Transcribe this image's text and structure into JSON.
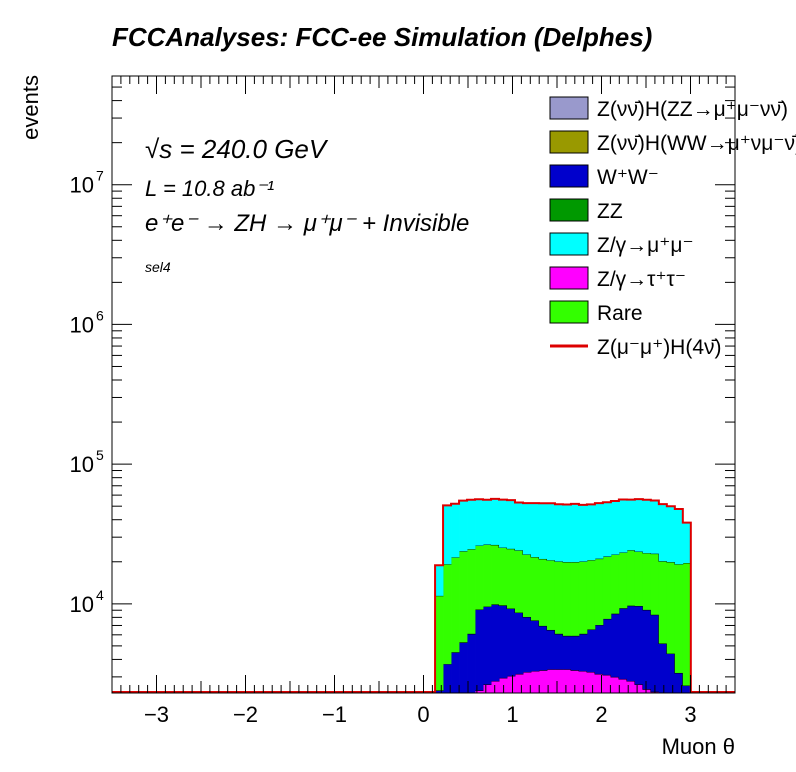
{
  "chart_data": {
    "type": "stacked-histogram",
    "title": "FCCAnalyses: FCC-ee Simulation (Delphes)",
    "xlabel": "Muon θ",
    "ylabel": "events",
    "xlim": [
      -3.5,
      3.5
    ],
    "ylog": true,
    "ylim": [
      2300,
      60000000
    ],
    "x_ticks": [
      -3,
      -2,
      -1,
      0,
      1,
      2,
      3
    ],
    "x_tick_labels": [
      "−3",
      "−2",
      "−1",
      "0",
      "1",
      "2",
      "3"
    ],
    "y_ticks": [
      10000,
      100000,
      1000000,
      10000000
    ],
    "y_tick_labels": [
      {
        "base": "10",
        "exp": "4"
      },
      {
        "base": "10",
        "exp": "5"
      },
      {
        "base": "10",
        "exp": "6"
      },
      {
        "base": "10",
        "exp": "7"
      }
    ],
    "annotations": {
      "sqrt_s": "√s = 240.0 GeV",
      "lumi": "L = 10.8 ab⁻¹",
      "process": "e⁺e⁻ → ZH → μ⁺μ⁻ + Invisible",
      "selection": "sel4"
    },
    "legend_position": "top-right",
    "bins": {
      "lo": 0.13,
      "width": 0.0898,
      "n": 32
    },
    "series": [
      {
        "name": "Z/γ→τ⁺τ⁻",
        "color": "#ff00ff",
        "values": [
          0,
          0,
          0,
          0,
          0,
          2400,
          2650,
          2800,
          2950,
          3050,
          3150,
          3250,
          3300,
          3350,
          3400,
          3400,
          3400,
          3350,
          3300,
          3250,
          3150,
          3100,
          3000,
          2900,
          2800,
          2650,
          2450,
          2350,
          0,
          0,
          0,
          0
        ]
      },
      {
        "name": "Z/γ→μ⁺μ⁻",
        "color": "#00ffff",
        "values": [
          0,
          0,
          0,
          0,
          0,
          0,
          0,
          0,
          0,
          0,
          0,
          0,
          0,
          0,
          0,
          0,
          0,
          0,
          0,
          0,
          0,
          0,
          0,
          0,
          0,
          0,
          0,
          0,
          0,
          0,
          0,
          0
        ]
      },
      {
        "name": "ZZ",
        "color": "#009900",
        "values": [
          0,
          0,
          0,
          0,
          0,
          0,
          0,
          0,
          0,
          0,
          0,
          0,
          0,
          0,
          0,
          0,
          0,
          0,
          0,
          0,
          0,
          0,
          0,
          0,
          0,
          0,
          0,
          0,
          0,
          0,
          0,
          0
        ]
      },
      {
        "name": "W⁺W⁻",
        "color": "#0000cc",
        "values": [
          2400,
          3700,
          4500,
          5300,
          6100,
          6700,
          6900,
          7100,
          6800,
          6200,
          5500,
          4800,
          4300,
          3600,
          3100,
          2700,
          2500,
          2550,
          2800,
          3300,
          3900,
          4700,
          5500,
          6400,
          6900,
          7000,
          6600,
          6000,
          5200,
          4400,
          3200,
          2600
        ]
      },
      {
        "name": "Z(νν̄)H(WW→μ⁺νμ⁻ν̄)",
        "color": "#999900",
        "values": [
          0,
          0,
          0,
          0,
          0,
          0,
          0,
          0,
          0,
          0,
          0,
          0,
          0,
          0,
          0,
          0,
          0,
          0,
          0,
          0,
          0,
          0,
          0,
          0,
          0,
          0,
          0,
          0,
          0,
          0,
          0,
          0
        ]
      },
      {
        "name": "Z(νν̄)H(ZZ→μ⁺μ⁻νν̄)",
        "color": "#9999cc",
        "values": [
          0,
          0,
          0,
          0,
          0,
          0,
          0,
          0,
          0,
          0,
          0,
          0,
          0,
          0,
          0,
          0,
          0,
          0,
          0,
          0,
          0,
          0,
          0,
          0,
          0,
          0,
          0,
          0,
          0,
          0,
          0,
          0
        ]
      },
      {
        "name": "Rare",
        "color": "#33ff00",
        "values": [
          9000,
          15500,
          17000,
          18500,
          18500,
          17000,
          17000,
          16500,
          15500,
          15500,
          15500,
          14500,
          14000,
          14000,
          14000,
          14000,
          14000,
          14000,
          14000,
          14000,
          14000,
          14000,
          14000,
          14000,
          14500,
          14000,
          14000,
          14500,
          15000,
          15500,
          16000,
          17000
        ]
      },
      {
        "name": "Z/γ→μ⁺μ⁻ (2)",
        "color": "#00ffff",
        "values": [
          7500,
          31500,
          30500,
          31000,
          31000,
          30000,
          29000,
          30000,
          30500,
          30500,
          29000,
          30000,
          31000,
          31500,
          32000,
          31500,
          31500,
          32000,
          31000,
          31000,
          31500,
          31500,
          32000,
          32500,
          31500,
          32500,
          32500,
          32000,
          31500,
          30000,
          28500,
          18500
        ]
      }
    ],
    "signal": {
      "name": "Z(μ⁻μ⁺)H(4ν̄)",
      "color": "#dd0000"
    },
    "legend": [
      {
        "label": "Z(νν̄)H(ZZ→μ⁺μ⁻νν̄)",
        "color": "#9999cc",
        "kind": "box"
      },
      {
        "label": "Z(νν̄)H(WW→μ⁺νμ⁻ν̄)",
        "color": "#999900",
        "kind": "box"
      },
      {
        "label": "W⁺W⁻",
        "color": "#0000cc",
        "kind": "box"
      },
      {
        "label": "ZZ",
        "color": "#009900",
        "kind": "box"
      },
      {
        "label": "Z/γ→μ⁺μ⁻",
        "color": "#00ffff",
        "kind": "box"
      },
      {
        "label": "Z/γ→τ⁺τ⁻",
        "color": "#ff00ff",
        "kind": "box"
      },
      {
        "label": "Rare",
        "color": "#33ff00",
        "kind": "box"
      },
      {
        "label": "Z(μ⁻μ⁺)H(4ν̄)",
        "color": "#dd0000",
        "kind": "line"
      }
    ]
  }
}
